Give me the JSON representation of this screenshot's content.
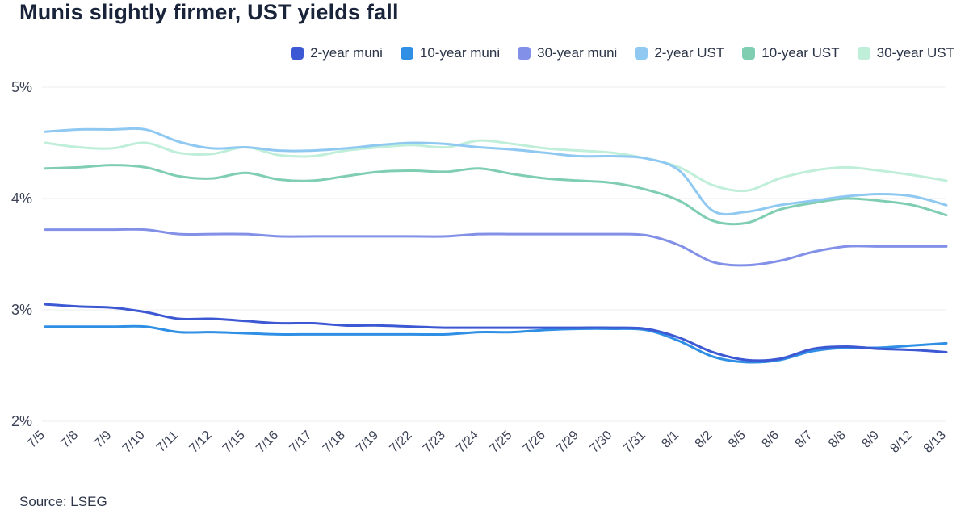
{
  "title": "Munis slightly firmer, UST yields fall",
  "source": "Source: LSEG",
  "chart_data": {
    "type": "line",
    "x": [
      "7/5",
      "7/8",
      "7/9",
      "7/10",
      "7/11",
      "7/12",
      "7/15",
      "7/16",
      "7/17",
      "7/18",
      "7/19",
      "7/22",
      "7/23",
      "7/24",
      "7/25",
      "7/26",
      "7/29",
      "7/30",
      "7/31",
      "8/1",
      "8/2",
      "8/5",
      "8/6",
      "8/7",
      "8/8",
      "8/9",
      "8/12",
      "8/13"
    ],
    "series": [
      {
        "name": "2-year muni",
        "color": "#3d58d3",
        "values": [
          3.05,
          3.03,
          3.02,
          2.98,
          2.92,
          2.92,
          2.9,
          2.88,
          2.88,
          2.86,
          2.86,
          2.85,
          2.84,
          2.84,
          2.84,
          2.84,
          2.84,
          2.84,
          2.83,
          2.75,
          2.62,
          2.55,
          2.56,
          2.65,
          2.67,
          2.65,
          2.64,
          2.62
        ]
      },
      {
        "name": "10-year muni",
        "color": "#2f8fe5",
        "values": [
          2.85,
          2.85,
          2.85,
          2.85,
          2.8,
          2.8,
          2.79,
          2.78,
          2.78,
          2.78,
          2.78,
          2.78,
          2.78,
          2.8,
          2.8,
          2.82,
          2.83,
          2.83,
          2.82,
          2.72,
          2.58,
          2.53,
          2.55,
          2.63,
          2.66,
          2.66,
          2.68,
          2.7
        ]
      },
      {
        "name": "30-year muni",
        "color": "#8290e8",
        "values": [
          3.72,
          3.72,
          3.72,
          3.72,
          3.68,
          3.68,
          3.68,
          3.66,
          3.66,
          3.66,
          3.66,
          3.66,
          3.66,
          3.68,
          3.68,
          3.68,
          3.68,
          3.68,
          3.67,
          3.58,
          3.43,
          3.4,
          3.44,
          3.52,
          3.57,
          3.57,
          3.57,
          3.57
        ]
      },
      {
        "name": "2-year UST",
        "color": "#8fc9f2",
        "values": [
          4.6,
          4.62,
          4.62,
          4.62,
          4.51,
          4.45,
          4.46,
          4.43,
          4.43,
          4.45,
          4.48,
          4.5,
          4.49,
          4.46,
          4.44,
          4.41,
          4.38,
          4.38,
          4.36,
          4.25,
          3.89,
          3.88,
          3.94,
          3.98,
          4.02,
          4.04,
          4.02,
          3.94
        ]
      },
      {
        "name": "10-year UST",
        "color": "#7fceb2",
        "values": [
          4.27,
          4.28,
          4.3,
          4.28,
          4.2,
          4.18,
          4.23,
          4.17,
          4.16,
          4.2,
          4.24,
          4.25,
          4.24,
          4.27,
          4.22,
          4.18,
          4.16,
          4.14,
          4.08,
          3.98,
          3.8,
          3.78,
          3.9,
          3.96,
          4.0,
          3.98,
          3.94,
          3.85
        ]
      },
      {
        "name": "30-year UST",
        "color": "#bfeed9",
        "values": [
          4.5,
          4.46,
          4.45,
          4.5,
          4.41,
          4.4,
          4.46,
          4.39,
          4.38,
          4.43,
          4.46,
          4.48,
          4.46,
          4.52,
          4.49,
          4.45,
          4.43,
          4.41,
          4.36,
          4.28,
          4.12,
          4.07,
          4.18,
          4.25,
          4.28,
          4.25,
          4.21,
          4.16
        ]
      }
    ],
    "ylim": [
      2,
      5
    ],
    "yticks": [
      "2%",
      "3%",
      "4%",
      "5%"
    ],
    "grid": true,
    "legend_position": "top",
    "grid_color": "#ececec",
    "axis_text_color": "#3c4257"
  }
}
